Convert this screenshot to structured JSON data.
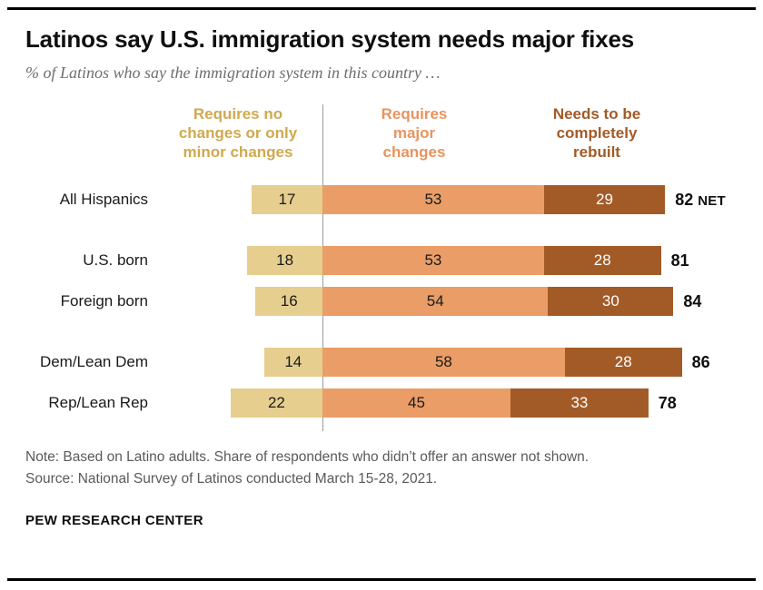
{
  "header": {
    "title": "Latinos say U.S. immigration system needs major fixes",
    "subtitle": "% of Latinos who say the immigration system in this country …"
  },
  "chart_data": {
    "type": "bar",
    "orientation": "horizontal",
    "stacked": true,
    "unit": "%",
    "xlim": [
      0,
      100
    ],
    "legend_position": "top",
    "series": [
      {
        "name": "Requires no changes or only minor changes",
        "lines": [
          "Requires no",
          "changes or only",
          "minor changes"
        ],
        "color": "#e6ce8e",
        "label_color": "#d0a94d",
        "value_text_color": "#1a1a1a"
      },
      {
        "name": "Requires major changes",
        "lines": [
          "Requires",
          "major",
          "changes"
        ],
        "color": "#ea9d66",
        "label_color": "#e8945f",
        "value_text_color": "#1a1a1a"
      },
      {
        "name": "Needs to be completely rebuilt",
        "lines": [
          "Needs to be",
          "completely",
          "rebuilt"
        ],
        "color": "#a25b27",
        "label_color": "#a25b27",
        "value_text_color": "#ffffff"
      }
    ],
    "categories": [
      "All Hispanics",
      "U.S. born",
      "Foreign born",
      "Dem/Lean Dem",
      "Rep/Lean Rep"
    ],
    "rows": [
      {
        "label": "All Hispanics",
        "values": [
          17,
          53,
          29
        ],
        "net": 82,
        "net_suffix": "NET",
        "new_group": false
      },
      {
        "label": "U.S. born",
        "values": [
          18,
          53,
          28
        ],
        "net": 81,
        "net_suffix": "",
        "new_group": true
      },
      {
        "label": "Foreign born",
        "values": [
          16,
          54,
          30
        ],
        "net": 84,
        "net_suffix": "",
        "new_group": false
      },
      {
        "label": "Dem/Lean Dem",
        "values": [
          14,
          58,
          28
        ],
        "net": 86,
        "net_suffix": "",
        "new_group": true
      },
      {
        "label": "Rep/Lean Rep",
        "values": [
          22,
          45,
          33
        ],
        "net": 78,
        "net_suffix": "",
        "new_group": false
      }
    ]
  },
  "footer": {
    "note": "Note: Based on Latino adults. Share of respondents who didn’t offer an answer not shown.",
    "source": "Source: National Survey of Latinos conducted March 15-28, 2021.",
    "brand": "PEW RESEARCH CENTER"
  }
}
